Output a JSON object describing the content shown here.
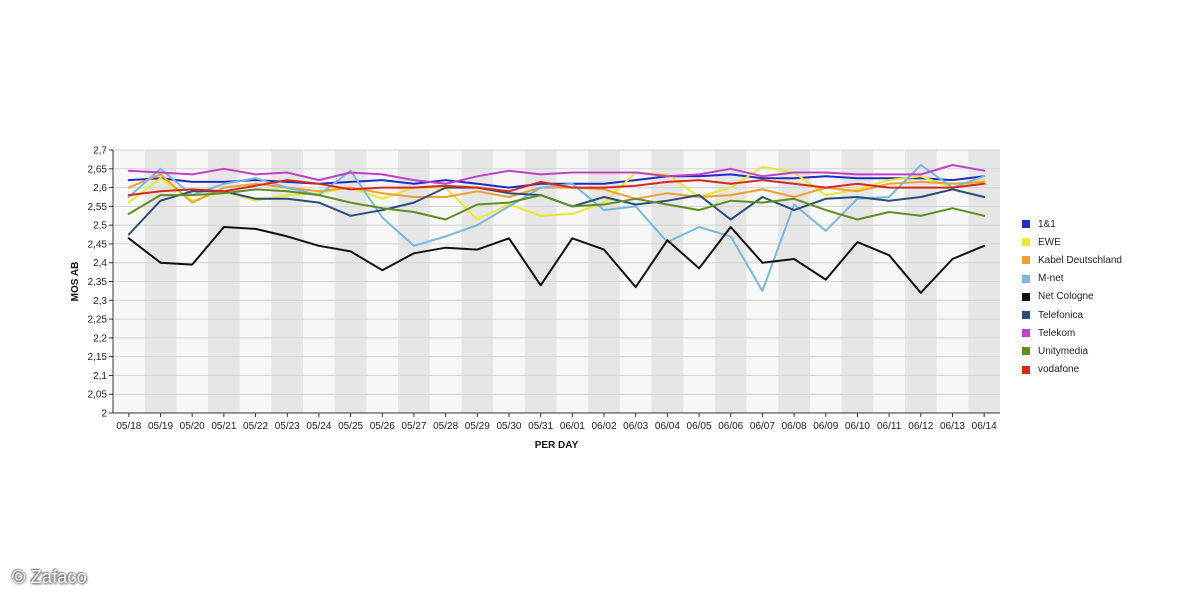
{
  "chart_data": {
    "type": "line",
    "xlabel": "PER DAY",
    "ylabel": "MOS AB",
    "ylim": [
      2,
      2.7
    ],
    "y_ticks": [
      "2",
      "2,05",
      "2,1",
      "2,15",
      "2,2",
      "2,25",
      "2,3",
      "2,35",
      "2,4",
      "2,45",
      "2,5",
      "2,55",
      "2,6",
      "2,65",
      "2,7"
    ],
    "x": [
      "05/18",
      "05/19",
      "05/20",
      "05/21",
      "05/22",
      "05/23",
      "05/24",
      "05/25",
      "05/26",
      "05/27",
      "05/28",
      "05/29",
      "05/30",
      "05/31",
      "06/01",
      "06/02",
      "06/03",
      "06/04",
      "06/05",
      "06/06",
      "06/07",
      "06/08",
      "06/09",
      "06/10",
      "06/11",
      "06/12",
      "06/13",
      "06/14"
    ],
    "grid": true,
    "legend_position": "right",
    "series": [
      {
        "name": "1&1",
        "color": "#1f2fbf",
        "values": [
          2.62,
          2.625,
          2.615,
          2.615,
          2.62,
          2.615,
          2.61,
          2.615,
          2.62,
          2.61,
          2.62,
          2.61,
          2.6,
          2.61,
          2.61,
          2.61,
          2.62,
          2.63,
          2.63,
          2.635,
          2.625,
          2.625,
          2.63,
          2.625,
          2.625,
          2.625,
          2.62,
          2.63
        ]
      },
      {
        "name": "EWE",
        "color": "#e8e830",
        "values": [
          2.56,
          2.625,
          2.565,
          2.59,
          2.565,
          2.58,
          2.585,
          2.6,
          2.57,
          2.6,
          2.6,
          2.515,
          2.555,
          2.525,
          2.53,
          2.56,
          2.64,
          2.635,
          2.575,
          2.6,
          2.655,
          2.64,
          2.58,
          2.595,
          2.62,
          2.63,
          2.6,
          2.62
        ]
      },
      {
        "name": "Kabel Deutschland",
        "color": "#f0a030",
        "values": [
          2.6,
          2.635,
          2.56,
          2.6,
          2.61,
          2.6,
          2.59,
          2.6,
          2.585,
          2.575,
          2.575,
          2.59,
          2.575,
          2.6,
          2.6,
          2.595,
          2.57,
          2.585,
          2.575,
          2.58,
          2.595,
          2.575,
          2.6,
          2.59,
          2.61,
          2.615,
          2.61,
          2.615
        ]
      },
      {
        "name": "M-net",
        "color": "#7ab8e0",
        "values": [
          2.575,
          2.65,
          2.58,
          2.61,
          2.625,
          2.6,
          2.58,
          2.645,
          2.52,
          2.445,
          2.47,
          2.5,
          2.55,
          2.6,
          2.61,
          2.54,
          2.55,
          2.455,
          2.495,
          2.47,
          2.325,
          2.555,
          2.485,
          2.57,
          2.575,
          2.66,
          2.6,
          2.63
        ]
      },
      {
        "name": "Net Cologne",
        "color": "#111111",
        "values": [
          2.465,
          2.4,
          2.395,
          2.495,
          2.49,
          2.47,
          2.445,
          2.43,
          2.38,
          2.425,
          2.44,
          2.435,
          2.465,
          2.34,
          2.465,
          2.435,
          2.335,
          2.46,
          2.385,
          2.495,
          2.4,
          2.41,
          2.355,
          2.455,
          2.42,
          2.32,
          2.41,
          2.445
        ]
      },
      {
        "name": "Telefonica",
        "color": "#2a4e7a",
        "values": [
          2.475,
          2.565,
          2.59,
          2.59,
          2.57,
          2.57,
          2.56,
          2.525,
          2.54,
          2.56,
          2.6,
          2.6,
          2.585,
          2.58,
          2.55,
          2.575,
          2.555,
          2.565,
          2.58,
          2.515,
          2.575,
          2.54,
          2.57,
          2.575,
          2.565,
          2.575,
          2.595,
          2.575
        ]
      },
      {
        "name": "Telekom",
        "color": "#c040c8",
        "values": [
          2.645,
          2.64,
          2.635,
          2.65,
          2.635,
          2.64,
          2.62,
          2.64,
          2.635,
          2.62,
          2.61,
          2.63,
          2.645,
          2.635,
          2.64,
          2.64,
          2.64,
          2.63,
          2.635,
          2.65,
          2.63,
          2.64,
          2.64,
          2.635,
          2.635,
          2.635,
          2.66,
          2.645
        ]
      },
      {
        "name": "Unitymedia",
        "color": "#5f8f20",
        "values": [
          2.53,
          2.58,
          2.58,
          2.585,
          2.595,
          2.59,
          2.58,
          2.56,
          2.545,
          2.535,
          2.515,
          2.555,
          2.56,
          2.58,
          2.55,
          2.555,
          2.57,
          2.555,
          2.54,
          2.565,
          2.56,
          2.57,
          2.54,
          2.515,
          2.535,
          2.525,
          2.545,
          2.525
        ]
      },
      {
        "name": "vodafone",
        "color": "#d82a1c",
        "values": [
          2.58,
          2.59,
          2.595,
          2.59,
          2.605,
          2.62,
          2.61,
          2.595,
          2.6,
          2.6,
          2.605,
          2.6,
          2.59,
          2.615,
          2.6,
          2.6,
          2.605,
          2.615,
          2.62,
          2.61,
          2.62,
          2.61,
          2.6,
          2.61,
          2.6,
          2.6,
          2.6,
          2.61
        ]
      }
    ]
  },
  "watermark": {
    "text": "© Zafaco"
  }
}
